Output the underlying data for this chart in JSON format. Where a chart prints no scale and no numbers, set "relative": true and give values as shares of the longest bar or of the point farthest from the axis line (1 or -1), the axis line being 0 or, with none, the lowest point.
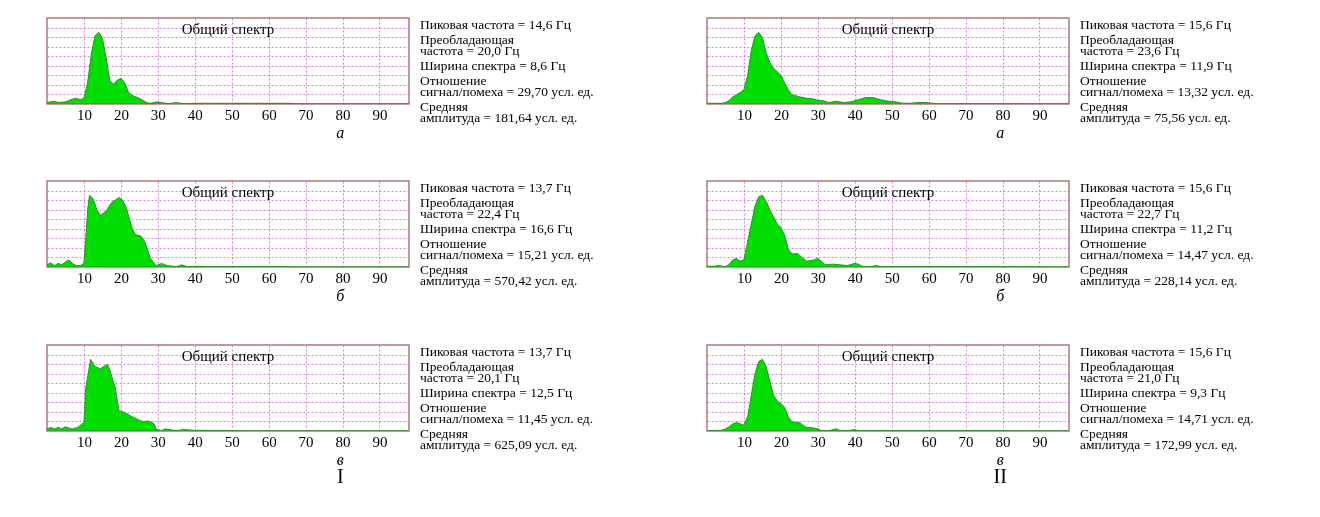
{
  "chart_data": [
    {
      "type": "area",
      "title": "Общий спектр",
      "relative": true,
      "color": "#00dd00",
      "xlim": [
        0,
        98
      ],
      "xticks": [
        10,
        20,
        30,
        40,
        50,
        60,
        70,
        80,
        90
      ],
      "grid": true,
      "x": [
        0,
        2,
        3,
        5,
        7,
        8,
        9,
        10,
        11,
        12,
        13,
        14,
        15,
        16,
        17,
        18,
        19,
        20,
        21,
        22,
        23,
        24,
        25,
        26,
        27,
        28,
        30,
        31,
        33,
        35,
        37,
        40,
        45,
        50,
        55,
        60,
        65,
        70,
        98
      ],
      "values": [
        0.02,
        0.04,
        0.02,
        0.03,
        0.07,
        0.08,
        0.06,
        0.08,
        0.3,
        0.7,
        0.95,
        1.0,
        0.92,
        0.65,
        0.32,
        0.28,
        0.33,
        0.36,
        0.3,
        0.17,
        0.12,
        0.1,
        0.08,
        0.05,
        0.02,
        0.01,
        0.03,
        0.02,
        0.005,
        0.02,
        0.005,
        0.01,
        0.01,
        0.01,
        0.01,
        0.01,
        0.01,
        0,
        0
      ],
      "annotations": [
        "Пиковая частота = 14,6 Гц",
        "Преобладающая частота = 20,0 Гц",
        "Ширина спектра = 8,6 Гц",
        "Отношение сигнал/помеха = 29,70 усл. ед.",
        "Средняя амплитуда = 181,64 усл. ед.",
        "а"
      ]
    },
    {
      "type": "area",
      "title": "Общий спектр",
      "relative": true,
      "color": "#00dd00",
      "xlim": [
        0,
        98
      ],
      "xticks": [
        10,
        20,
        30,
        40,
        50,
        60,
        70,
        80,
        90
      ],
      "grid": true,
      "x": [
        0,
        1,
        2,
        3,
        4,
        5,
        6,
        7,
        8,
        9,
        10,
        10.5,
        11,
        11.5,
        12.5,
        13.5,
        14.5,
        16,
        17.5,
        19.5,
        20.5,
        21.5,
        23,
        24,
        25.5,
        26.5,
        28,
        29.5,
        31,
        32.5,
        35,
        36.5,
        38,
        41,
        45,
        50,
        60,
        70,
        98
      ],
      "values": [
        0.03,
        0.06,
        0.02,
        0.05,
        0.03,
        0.07,
        0.1,
        0.04,
        0.02,
        0.02,
        0.05,
        0.4,
        0.8,
        1.0,
        0.95,
        0.8,
        0.72,
        0.78,
        0.9,
        0.97,
        0.93,
        0.82,
        0.55,
        0.45,
        0.43,
        0.35,
        0.12,
        0.02,
        0.05,
        0.02,
        0.005,
        0.03,
        0.005,
        0.01,
        0.005,
        0.005,
        0.005,
        0,
        0
      ],
      "annotations": [
        "Пиковая частота = 13,7 Гц",
        "Преобладающая частота = 22,4 Гц",
        "Ширина спектра = 16,6 Гц",
        "Отношение сигнал/помеха = 15,21 усл. ед.",
        "Средняя амплитуда = 570,42 усл. ед.",
        "б"
      ]
    },
    {
      "type": "area",
      "title": "Общий спектр",
      "relative": true,
      "color": "#00dd00",
      "xlim": [
        0,
        98
      ],
      "xticks": [
        10,
        20,
        30,
        40,
        50,
        60,
        70,
        80,
        90
      ],
      "grid": true,
      "x": [
        0,
        1,
        2,
        3,
        4,
        5,
        6,
        7,
        8.3,
        10,
        10.5,
        11.8,
        13,
        14.4,
        16.4,
        17,
        18.5,
        19.5,
        21,
        23,
        25,
        26,
        27.5,
        29,
        29.5,
        31,
        32,
        35,
        37,
        40,
        43,
        45,
        50,
        55,
        98
      ],
      "values": [
        0.03,
        0.05,
        0.03,
        0.05,
        0.03,
        0.06,
        0.04,
        0.03,
        0.05,
        0.12,
        0.6,
        1.0,
        0.9,
        0.87,
        0.93,
        0.85,
        0.6,
        0.28,
        0.26,
        0.2,
        0.15,
        0.13,
        0.14,
        0.1,
        0.03,
        0.005,
        0.03,
        0.005,
        0.02,
        0.01,
        0.01,
        0.005,
        0.005,
        0,
        0
      ],
      "annotations": [
        "Пиковая частота = 13,7 Гц",
        "Преобладающая частота = 20,1 Гц",
        "Ширина спектра = 12,5 Гц",
        "Отношение сигнал/помеха = 11,45 усл. ед.",
        "Средняя амплитуда = 625,09 усл. ед.",
        "в",
        "I"
      ]
    },
    {
      "type": "area",
      "title": "Общий спектр",
      "relative": true,
      "color": "#00dd00",
      "xlim": [
        0,
        98
      ],
      "xticks": [
        10,
        20,
        30,
        40,
        50,
        60,
        70,
        80,
        90
      ],
      "grid": true,
      "x": [
        0,
        4,
        5,
        6,
        7,
        8,
        9,
        10,
        11,
        12,
        13,
        14,
        15,
        16,
        17,
        18,
        19,
        20,
        21,
        22,
        23,
        25,
        27,
        29,
        30,
        31,
        33,
        35,
        37,
        39,
        41,
        43,
        45,
        47,
        49,
        51,
        53,
        55,
        57,
        59,
        61,
        63,
        65,
        70,
        75,
        80,
        85,
        98
      ],
      "values": [
        0.01,
        0.01,
        0.02,
        0.05,
        0.1,
        0.13,
        0.16,
        0.2,
        0.4,
        0.75,
        0.95,
        1.0,
        0.93,
        0.72,
        0.58,
        0.5,
        0.45,
        0.4,
        0.3,
        0.2,
        0.13,
        0.1,
        0.08,
        0.07,
        0.05,
        0.05,
        0.02,
        0.04,
        0.02,
        0.03,
        0.06,
        0.09,
        0.09,
        0.06,
        0.04,
        0.03,
        0.01,
        0.01,
        0.02,
        0.02,
        0.01,
        0.005,
        0.005,
        0.005,
        0.005,
        0.005,
        0,
        0
      ],
      "annotations": [
        "Пиковая частота = 15,6 Гц",
        "Преобладающая частота = 23,6 Гц",
        "Ширина спектра = 11,9 Гц",
        "Отношение сигнал/помеха = 13,32 усл. ед.",
        "Средняя амплитуда = 75,56 усл. ед.",
        "а"
      ]
    },
    {
      "type": "area",
      "title": "Общий спектр",
      "relative": true,
      "color": "#00dd00",
      "xlim": [
        0,
        98
      ],
      "xticks": [
        10,
        20,
        30,
        40,
        50,
        60,
        70,
        80,
        90
      ],
      "grid": true,
      "x": [
        0,
        2,
        3,
        5,
        6,
        7,
        8,
        9,
        10,
        11,
        12,
        13,
        14,
        15,
        16,
        17,
        18,
        19,
        20,
        21,
        22,
        23,
        24.5,
        26,
        27,
        29,
        30,
        31,
        32,
        34,
        36,
        38,
        40,
        41,
        42,
        44,
        46,
        47,
        55,
        70,
        98
      ],
      "values": [
        0.01,
        0.01,
        0.02,
        0.005,
        0.04,
        0.1,
        0.12,
        0.08,
        0.1,
        0.35,
        0.6,
        0.85,
        0.98,
        1.0,
        0.92,
        0.8,
        0.7,
        0.6,
        0.55,
        0.45,
        0.25,
        0.18,
        0.19,
        0.12,
        0.08,
        0.1,
        0.12,
        0.08,
        0.03,
        0.04,
        0.03,
        0.02,
        0.05,
        0.04,
        0.01,
        0.005,
        0.02,
        0.005,
        0.005,
        0.005,
        0
      ],
      "annotations": [
        "Пиковая частота = 15,6 Гц",
        "Преобладающая частота = 22,7 Гц",
        "Ширина спектра = 11,2 Гц",
        "Отношение сигнал/помеха = 14,47 усл. ед.",
        "Средняя амплитуда = 228,14 усл. ед.",
        "б"
      ]
    },
    {
      "type": "area",
      "title": "Общий спектр",
      "relative": true,
      "color": "#00dd00",
      "xlim": [
        0,
        98
      ],
      "xticks": [
        10,
        20,
        30,
        40,
        50,
        60,
        70,
        80,
        90
      ],
      "grid": true,
      "x": [
        0,
        4,
        5,
        6,
        7,
        8,
        9,
        10,
        11,
        12,
        13,
        14,
        15,
        16,
        17,
        18,
        19,
        20,
        21,
        22,
        23,
        24,
        25,
        26,
        27,
        28,
        29,
        30,
        31,
        33,
        35,
        36,
        38,
        40,
        41,
        45,
        50,
        70,
        80,
        82,
        98
      ],
      "values": [
        0,
        0.01,
        0.03,
        0.06,
        0.1,
        0.12,
        0.1,
        0.08,
        0.2,
        0.5,
        0.8,
        0.97,
        1.0,
        0.9,
        0.7,
        0.5,
        0.42,
        0.38,
        0.33,
        0.2,
        0.13,
        0.12,
        0.12,
        0.08,
        0.05,
        0.05,
        0.04,
        0.03,
        0.005,
        0.005,
        0.03,
        0.005,
        0.005,
        0.02,
        0.005,
        0.005,
        0.005,
        0.005,
        0.005,
        0,
        0
      ],
      "annotations": [
        "Пиковая частота = 15,6 Гц",
        "Преобладающая частота = 21,0 Гц",
        "Ширина спектра = 9,3 Гц",
        "Отношение сигнал/помеха = 14,71 усл. ед.",
        "Средняя амплитуда = 172,99 усл. ед.",
        "в",
        "II"
      ]
    }
  ]
}
